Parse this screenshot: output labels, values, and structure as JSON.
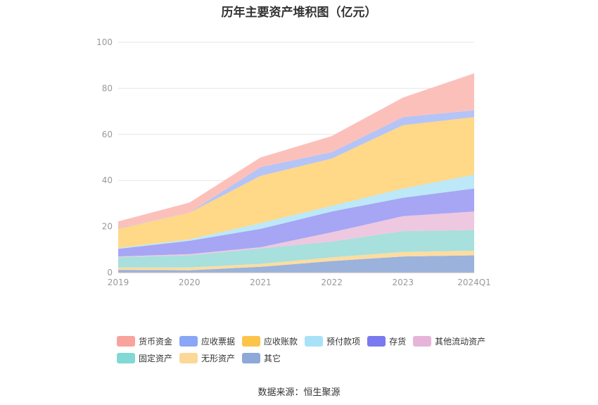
{
  "chart_data": {
    "type": "area",
    "stacked": true,
    "title": "历年主要资产堆积图（亿元）",
    "categories": [
      "2019",
      "2020",
      "2021",
      "2022",
      "2023",
      "2024Q1"
    ],
    "ylim": [
      0,
      100
    ],
    "yticks": [
      "0",
      "20",
      "40",
      "60",
      "80",
      "100"
    ],
    "grid": true,
    "legend_position": "bottom",
    "series": [
      {
        "name": "其它",
        "color": "#9ab2dc",
        "values": [
          1.2,
          1.0,
          2.5,
          5.0,
          7.0,
          7.5
        ]
      },
      {
        "name": "无形资产",
        "color": "#fcdca0",
        "values": [
          1.0,
          1.2,
          1.3,
          1.6,
          2.0,
          2.0
        ]
      },
      {
        "name": "固定资产",
        "color": "#a7e0dd",
        "values": [
          4.5,
          5.3,
          6.7,
          6.9,
          9.0,
          9.0
        ]
      },
      {
        "name": "其他流动资产",
        "color": "#eec8e0",
        "values": [
          0.3,
          0.5,
          0.5,
          4.0,
          6.5,
          8.0
        ]
      },
      {
        "name": "存货",
        "color": "#a6a6f4",
        "values": [
          3.3,
          5.8,
          8.0,
          9.0,
          8.0,
          10.0
        ]
      },
      {
        "name": "预付款项",
        "color": "#bce8f8",
        "values": [
          0.4,
          0.6,
          2.5,
          2.5,
          4.0,
          6.0
        ]
      },
      {
        "name": "应收账款",
        "color": "#ffd888",
        "values": [
          8.3,
          11.6,
          20.5,
          20.5,
          27.5,
          25.0
        ]
      },
      {
        "name": "应收票据",
        "color": "#b4c4f6",
        "values": [
          0.2,
          0.1,
          3.8,
          2.8,
          3.5,
          3.0
        ]
      },
      {
        "name": "货币资金",
        "color": "#fcc0bb",
        "values": [
          3.0,
          4.3,
          4.2,
          7.0,
          8.5,
          16.0
        ]
      }
    ]
  },
  "legend": {
    "items": [
      {
        "name": "货币资金",
        "color": "#f8a39c"
      },
      {
        "name": "应收票据",
        "color": "#8aa6f6"
      },
      {
        "name": "应收账款",
        "color": "#fcc44a"
      },
      {
        "name": "预付款项",
        "color": "#a8e2f8"
      },
      {
        "name": "存货",
        "color": "#7a7af0"
      },
      {
        "name": "其他流动资产",
        "color": "#e6b4d8"
      },
      {
        "name": "固定资产",
        "color": "#82d8d4"
      },
      {
        "name": "无形资产",
        "color": "#fcd898"
      },
      {
        "name": "其它",
        "color": "#8ea8d8"
      }
    ]
  },
  "source": "数据来源：恒生聚源"
}
